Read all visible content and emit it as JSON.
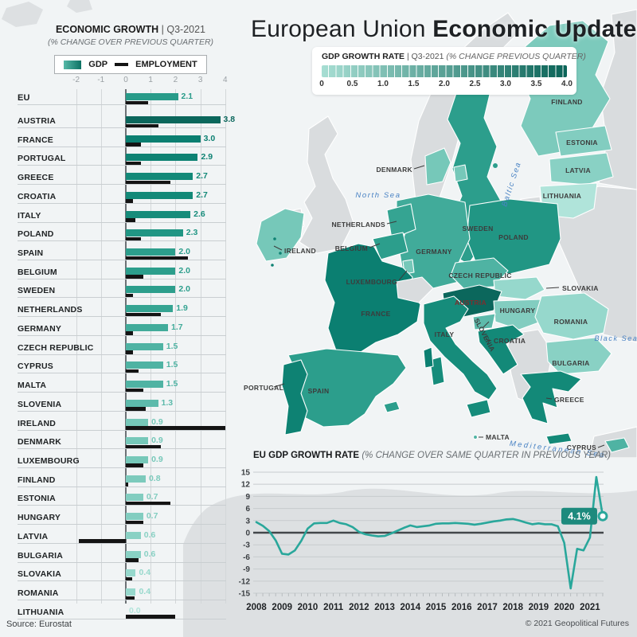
{
  "header": {
    "title_regular": "European Union",
    "title_bold": "Economic Update"
  },
  "map_legend": {
    "title": "GDP GROWTH RATE",
    "separator": "|",
    "period": "Q3-2021",
    "subtitle": "(% CHANGE PREVIOUS QUARTER)",
    "ticks": [
      "0",
      "0.5",
      "1.0",
      "1.5",
      "2.0",
      "2.5",
      "3.0",
      "3.5",
      "4.0"
    ],
    "gradient_start": "#a7ded3",
    "gradient_end": "#0b6458"
  },
  "bar_chart_header": {
    "title": "ECONOMIC GROWTH",
    "separator": "|",
    "period": "Q3-2021",
    "subtitle": "(% CHANGE OVER PREVIOUS QUARTER)"
  },
  "line_chart_header": {
    "title": "EU GDP GROWTH RATE",
    "subtitle": "(% CHANGE OVER SAME QUARTER IN PREVIOUS YEAR)"
  },
  "footer": {
    "source": "Source: Eurostat",
    "copyright": "© 2021 Geopolitical Futures"
  },
  "map": {
    "non_eu_color": "#d9dcde",
    "sea_labels": {
      "north_sea": "North Sea",
      "baltic_sea": "Baltic Sea",
      "black_sea": "Black Sea",
      "mediterranean_sea": "Mediterranean Sea"
    },
    "countries": {
      "austria": {
        "label": "AUSTRIA",
        "value": 3.8,
        "color": "#0b675c"
      },
      "france": {
        "label": "FRANCE",
        "value": 3.0,
        "color": "#0b7f71"
      },
      "portugal": {
        "label": "PORTUGAL",
        "value": 2.9,
        "color": "#0e8273"
      },
      "greece": {
        "label": "GREECE",
        "value": 2.7,
        "color": "#138978"
      },
      "croatia": {
        "label": "CROATIA",
        "value": 2.7,
        "color": "#138978"
      },
      "italy": {
        "label": "ITALY",
        "value": 2.6,
        "color": "#168c7b"
      },
      "poland": {
        "label": "POLAND",
        "value": 2.3,
        "color": "#219684"
      },
      "spain": {
        "label": "SPAIN",
        "value": 2.0,
        "color": "#2c9e8c"
      },
      "belgium": {
        "label": "BELGIUM",
        "value": 2.0,
        "color": "#2c9e8c"
      },
      "sweden": {
        "label": "SWEDEN",
        "value": 2.0,
        "color": "#2c9e8c"
      },
      "netherlands": {
        "label": "NETHERLANDS",
        "value": 1.9,
        "color": "#35a492"
      },
      "germany": {
        "label": "GERMANY",
        "value": 1.7,
        "color": "#41ab9a"
      },
      "czech": {
        "label": "CZECH REPUBLIC",
        "value": 1.5,
        "color": "#4fb3a3"
      },
      "cyprus": {
        "label": "CYPRUS",
        "value": 1.5,
        "color": "#4fb3a3"
      },
      "malta": {
        "label": "MALTA",
        "value": 1.5,
        "color": "#4fb3a3"
      },
      "slovenia": {
        "label": "SLOVENIA",
        "value": 1.3,
        "color": "#5dbaab"
      },
      "ireland": {
        "label": "IRELAND",
        "value": 0.9,
        "color": "#76c8b9"
      },
      "denmark": {
        "label": "DENMARK",
        "value": 0.9,
        "color": "#76c8b9"
      },
      "luxembourg": {
        "label": "LUXEMBOURG",
        "value": 0.9,
        "color": "#76c8b9"
      },
      "finland": {
        "label": "FINLAND",
        "value": 0.8,
        "color": "#7ccabc"
      },
      "estonia": {
        "label": "ESTONIA",
        "value": 0.7,
        "color": "#82cdc0"
      },
      "hungary": {
        "label": "HUNGARY",
        "value": 0.7,
        "color": "#82cdc0"
      },
      "latvia": {
        "label": "LATVIA",
        "value": 0.6,
        "color": "#89d1c4"
      },
      "bulgaria": {
        "label": "BULGARIA",
        "value": 0.6,
        "color": "#89d1c4"
      },
      "slovakia": {
        "label": "SLOVAKIA",
        "value": 0.4,
        "color": "#96d8cc"
      },
      "romania": {
        "label": "ROMANIA",
        "value": 0.4,
        "color": "#96d8cc"
      },
      "lithuania": {
        "label": "LITHUANIA",
        "value": 0.0,
        "color": "#b0e4da"
      }
    }
  },
  "chart_data": [
    {
      "type": "bar",
      "title": "ECONOMIC GROWTH | Q3-2021",
      "subtitle": "(% CHANGE OVER PREVIOUS QUARTER)",
      "orientation": "horizontal",
      "xlim": [
        -2,
        4
      ],
      "axis_ticks": [
        -2,
        -1,
        0,
        1,
        2,
        3,
        4
      ],
      "legend_position": "top",
      "categories": [
        "EU",
        "AUSTRIA",
        "FRANCE",
        "PORTUGAL",
        "GREECE",
        "CROATIA",
        "ITALY",
        "POLAND",
        "SPAIN",
        "BELGIUM",
        "SWEDEN",
        "NETHERLANDS",
        "GERMANY",
        "CZECH REPUBLIC",
        "CYPRUS",
        "MALTA",
        "SLOVENIA",
        "IRELAND",
        "DENMARK",
        "LUXEMBOURG",
        "FINLAND",
        "ESTONIA",
        "HUNGARY",
        "LATVIA",
        "BULGARIA",
        "SLOVAKIA",
        "ROMANIA",
        "LITHUANIA"
      ],
      "series": [
        {
          "name": "GDP",
          "values": [
            2.1,
            3.8,
            3.0,
            2.9,
            2.7,
            2.7,
            2.6,
            2.3,
            2.0,
            2.0,
            2.0,
            1.9,
            1.7,
            1.5,
            1.5,
            1.5,
            1.3,
            0.9,
            0.9,
            0.9,
            0.8,
            0.7,
            0.7,
            0.6,
            0.6,
            0.4,
            0.4,
            0.0
          ],
          "value_labels": [
            "2.1",
            "3.8",
            "3.0",
            "2.9",
            "2.7",
            "2.7",
            "2.6",
            "2.3",
            "2.0",
            "2.0",
            "2.0",
            "1.9",
            "1.7",
            "1.5",
            "1.5",
            "1.5",
            "1.3",
            "0.9",
            "0.9",
            "0.9",
            "0.8",
            "0.7",
            "0.7",
            "0.6",
            "0.6",
            "0.4",
            "0.4",
            "0.0"
          ],
          "colors": [
            "#289b89",
            "#0b675c",
            "#0b7f71",
            "#0e8273",
            "#138978",
            "#138978",
            "#168c7b",
            "#219684",
            "#2c9e8c",
            "#2c9e8c",
            "#2c9e8c",
            "#35a492",
            "#41ab9a",
            "#4fb3a3",
            "#4fb3a3",
            "#4fb3a3",
            "#5dbaab",
            "#76c8b9",
            "#76c8b9",
            "#76c8b9",
            "#7ccabc",
            "#82cdc0",
            "#82cdc0",
            "#89d1c4",
            "#89d1c4",
            "#96d8cc",
            "#96d8cc",
            "#b0e4da"
          ]
        },
        {
          "name": "EMPLOYMENT",
          "color": "#141414",
          "values": [
            0.9,
            1.3,
            0.6,
            0.6,
            1.8,
            0.3,
            0.4,
            0.6,
            2.5,
            0.7,
            0.3,
            1.4,
            0.3,
            0.3,
            0.5,
            0.7,
            0.8,
            4.0,
            1.4,
            0.7,
            0.1,
            1.8,
            0.7,
            -1.9,
            0.5,
            0.25,
            0.35,
            2.0
          ]
        }
      ]
    },
    {
      "type": "heatmap",
      "subtype": "choropleth-map",
      "title": "GDP GROWTH RATE | Q3-2021 (% CHANGE PREVIOUS QUARTER)",
      "scale_range": [
        0,
        4
      ],
      "scale_ticks": [
        0,
        0.5,
        1.0,
        1.5,
        2.0,
        2.5,
        3.0,
        3.5,
        4.0
      ],
      "data": {
        "AUSTRIA": 3.8,
        "FRANCE": 3.0,
        "PORTUGAL": 2.9,
        "GREECE": 2.7,
        "CROATIA": 2.7,
        "ITALY": 2.6,
        "POLAND": 2.3,
        "SPAIN": 2.0,
        "BELGIUM": 2.0,
        "SWEDEN": 2.0,
        "NETHERLANDS": 1.9,
        "GERMANY": 1.7,
        "CZECH REPUBLIC": 1.5,
        "CYPRUS": 1.5,
        "MALTA": 1.5,
        "SLOVENIA": 1.3,
        "IRELAND": 0.9,
        "DENMARK": 0.9,
        "LUXEMBOURG": 0.9,
        "FINLAND": 0.8,
        "ESTONIA": 0.7,
        "HUNGARY": 0.7,
        "LATVIA": 0.6,
        "BULGARIA": 0.6,
        "SLOVAKIA": 0.4,
        "ROMANIA": 0.4,
        "LITHUANIA": 0.0
      }
    },
    {
      "type": "line",
      "title": "EU GDP GROWTH RATE",
      "subtitle": "(% CHANGE OVER SAME QUARTER IN PREVIOUS YEAR)",
      "line_color": "#29a79b",
      "ylim": [
        -15,
        15
      ],
      "y_ticks": [
        15,
        12,
        9,
        6,
        3,
        0,
        -3,
        -6,
        -9,
        -12,
        -15
      ],
      "x_tick_labels": [
        2008,
        2009,
        2010,
        2011,
        2012,
        2013,
        2014,
        2015,
        2016,
        2017,
        2018,
        2019,
        2020,
        2021
      ],
      "x_interval": "quarterly",
      "end_label": "4.1%",
      "end_value": 4.1,
      "values": [
        2.6,
        1.7,
        0.4,
        -1.9,
        -5.2,
        -5.4,
        -4.4,
        -2.0,
        1.0,
        2.3,
        2.4,
        2.4,
        3.0,
        2.4,
        2.1,
        1.4,
        0.2,
        -0.4,
        -0.7,
        -0.9,
        -0.8,
        -0.2,
        0.5,
        1.2,
        1.8,
        1.4,
        1.6,
        1.8,
        2.2,
        2.3,
        2.3,
        2.4,
        2.3,
        2.2,
        2.0,
        2.2,
        2.5,
        2.8,
        3.0,
        3.3,
        3.4,
        3.0,
        2.5,
        2.1,
        2.3,
        2.1,
        2.1,
        1.6,
        -2.5,
        -13.8,
        -4.0,
        -4.4,
        -1.2,
        13.8,
        4.1
      ]
    }
  ]
}
